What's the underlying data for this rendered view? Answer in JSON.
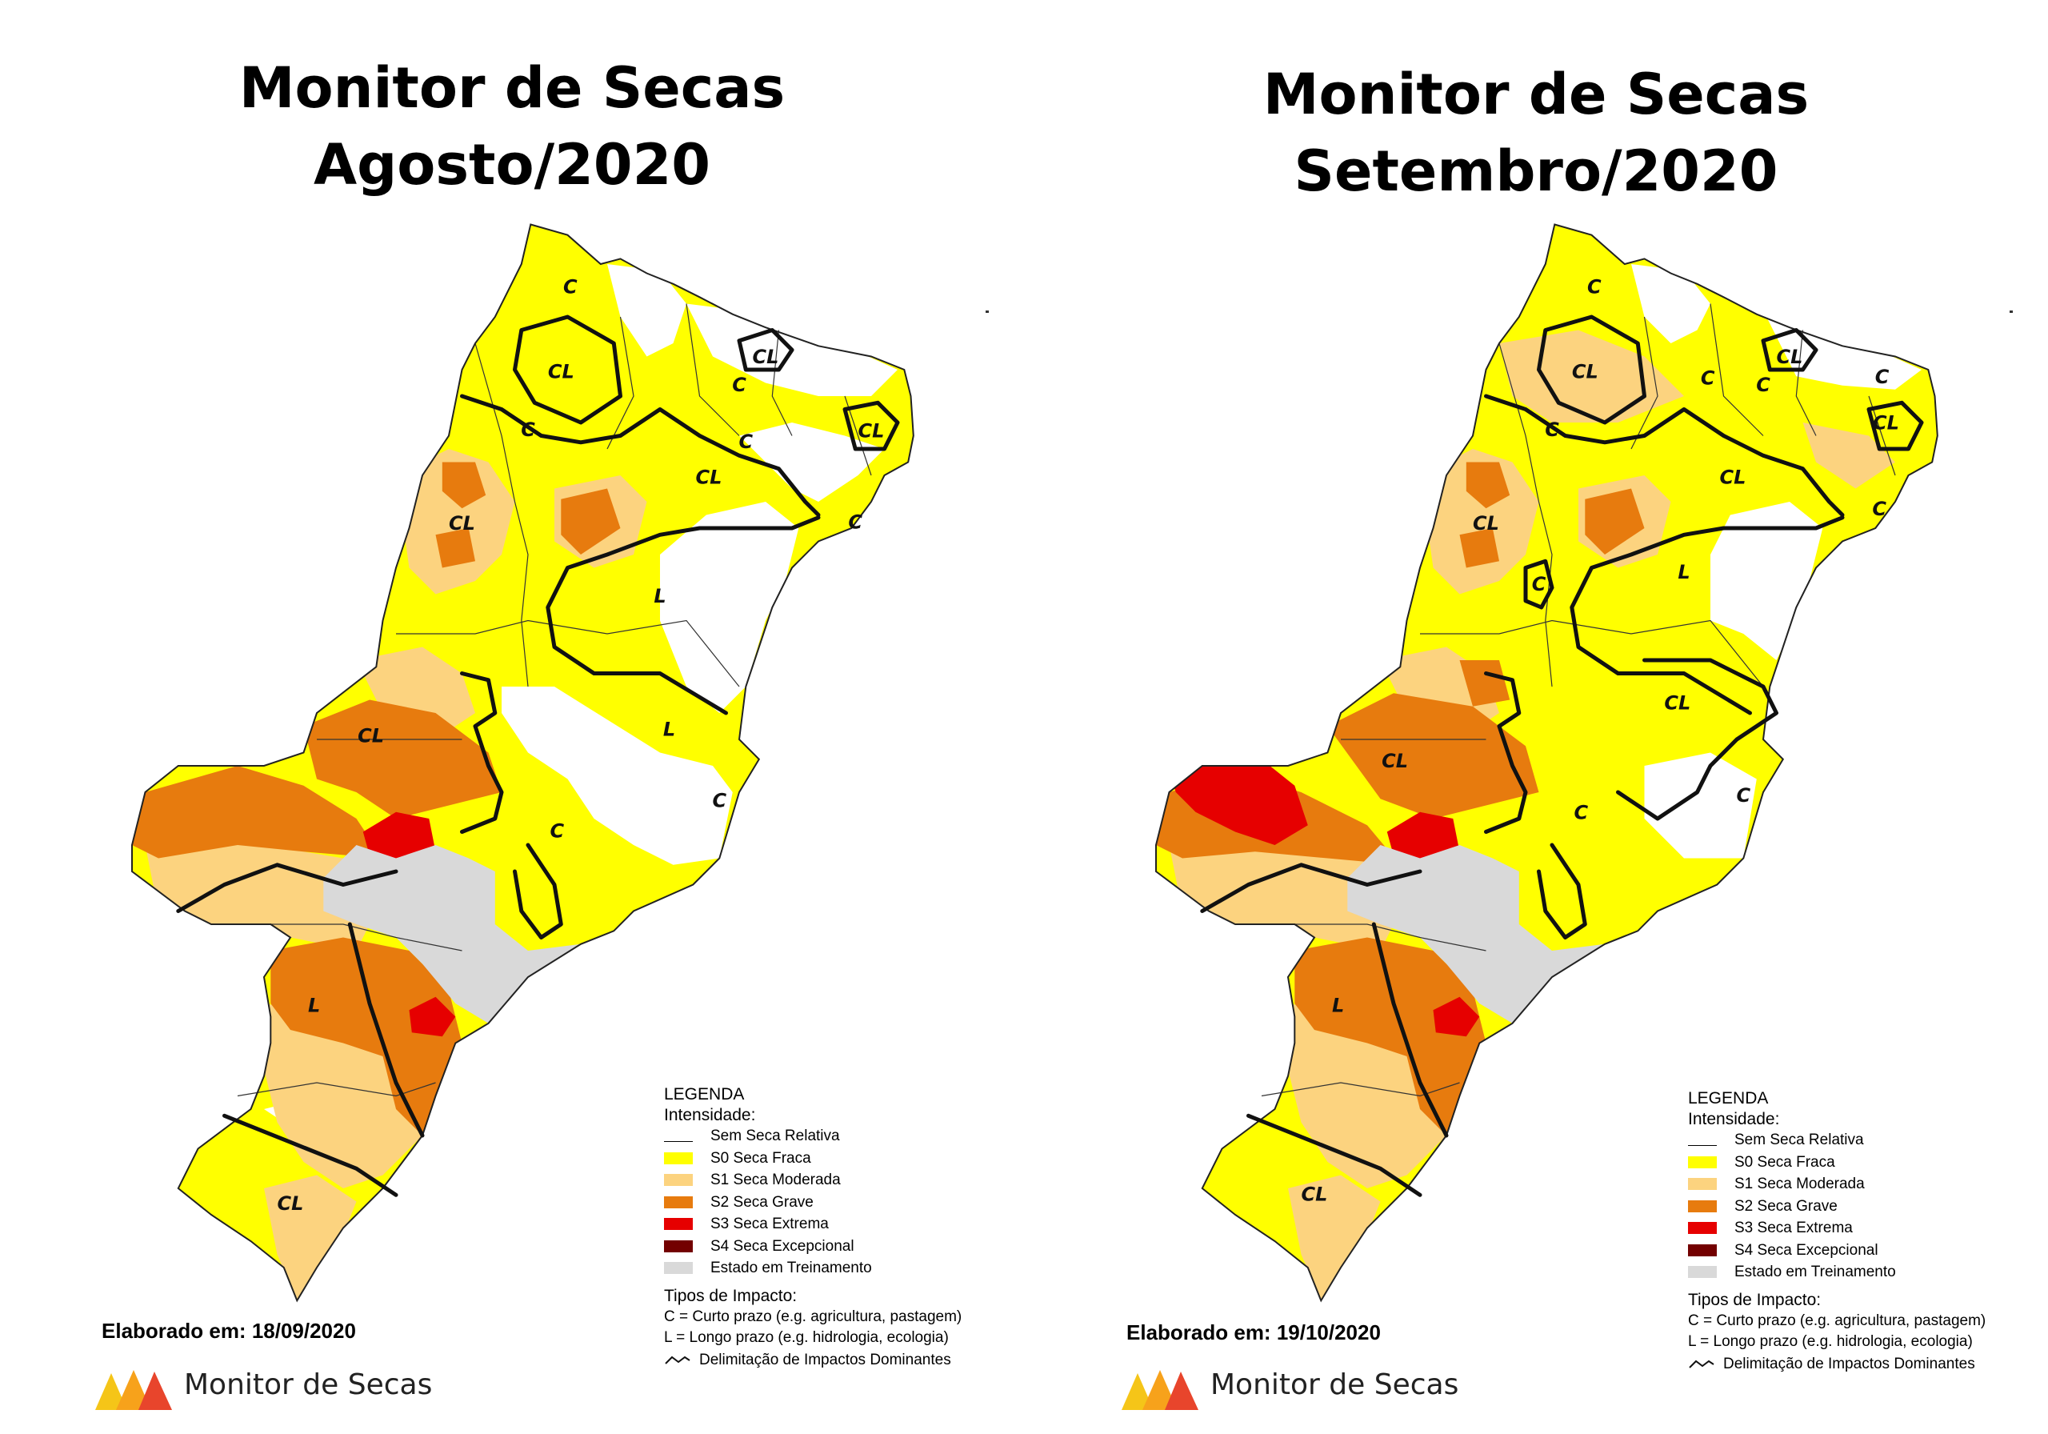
{
  "panels": [
    {
      "title_line1": "Monitor de Secas",
      "title_line2": "Agosto/2020",
      "footer_label": "Elaborado em: 18/09/2020",
      "impact_labels": [
        {
          "text": "C",
          "region": "north-tip"
        },
        {
          "text": "CL",
          "region": "north-center"
        },
        {
          "text": "C",
          "region": "north-left"
        },
        {
          "text": "CL",
          "region": "northeast"
        },
        {
          "text": "C",
          "region": "northeast-lower"
        },
        {
          "text": "C",
          "region": "east-mid"
        },
        {
          "text": "CL",
          "region": "east-coast"
        },
        {
          "text": "CL",
          "region": "central-band"
        },
        {
          "text": "C",
          "region": "east-coast-south"
        },
        {
          "text": "CL",
          "region": "west-north"
        },
        {
          "text": "L",
          "region": "interior"
        },
        {
          "text": "L",
          "region": "interior-south"
        },
        {
          "text": "C",
          "region": "southeast-coast"
        },
        {
          "text": "CL",
          "region": "center-west"
        },
        {
          "text": "C",
          "region": "southeast"
        },
        {
          "text": "L",
          "region": "south"
        },
        {
          "text": "CL",
          "region": "far-south"
        }
      ]
    },
    {
      "title_line1": "Monitor de Secas",
      "title_line2": "Setembro/2020",
      "footer_label": "Elaborado em: 19/10/2020",
      "impact_labels": [
        {
          "text": "C",
          "region": "north-tip"
        },
        {
          "text": "CL",
          "region": "north-center"
        },
        {
          "text": "C",
          "region": "north-left"
        },
        {
          "text": "C",
          "region": "north-mid"
        },
        {
          "text": "CL",
          "region": "northeast"
        },
        {
          "text": "C",
          "region": "northeast-lower"
        },
        {
          "text": "C",
          "region": "east-coast-top"
        },
        {
          "text": "CL",
          "region": "east-coast"
        },
        {
          "text": "CL",
          "region": "central-band"
        },
        {
          "text": "C",
          "region": "east-coast-south"
        },
        {
          "text": "CL",
          "region": "west-north"
        },
        {
          "text": "C",
          "region": "west-island"
        },
        {
          "text": "L",
          "region": "interior"
        },
        {
          "text": "CL",
          "region": "interior-south"
        },
        {
          "text": "C",
          "region": "southeast-coast"
        },
        {
          "text": "CL",
          "region": "center-west"
        },
        {
          "text": "C",
          "region": "southeast"
        },
        {
          "text": "L",
          "region": "south"
        },
        {
          "text": "CL",
          "region": "far-south"
        }
      ]
    }
  ],
  "legend": {
    "title": "LEGENDA",
    "intensity_label": "Intensidade:",
    "items": [
      {
        "label": "Sem Seca Relativa",
        "color": "#ffffff"
      },
      {
        "label": "S0 Seca Fraca",
        "color": "#ffff00"
      },
      {
        "label": "S1 Seca Moderada",
        "color": "#fcd37f"
      },
      {
        "label": "S2 Seca Grave",
        "color": "#e77b0e"
      },
      {
        "label": "S3 Seca Extrema",
        "color": "#e60000"
      },
      {
        "label": "S4 Seca Excepcional",
        "color": "#730000"
      },
      {
        "label": "Estado em Treinamento",
        "color": "#d9d9d9"
      }
    ],
    "impact_title": "Tipos de Impacto:",
    "impact_c": "C = Curto prazo (e.g. agricultura, pastagem)",
    "impact_l": "L = Longo prazo (e.g. hidrologia, ecologia)",
    "impact_line": "Delimitação de Impactos Dominantes"
  },
  "brand": {
    "name": "Monitor de Secas",
    "colors": [
      "#f7a21b",
      "#e8452c",
      "#f5c518"
    ]
  }
}
